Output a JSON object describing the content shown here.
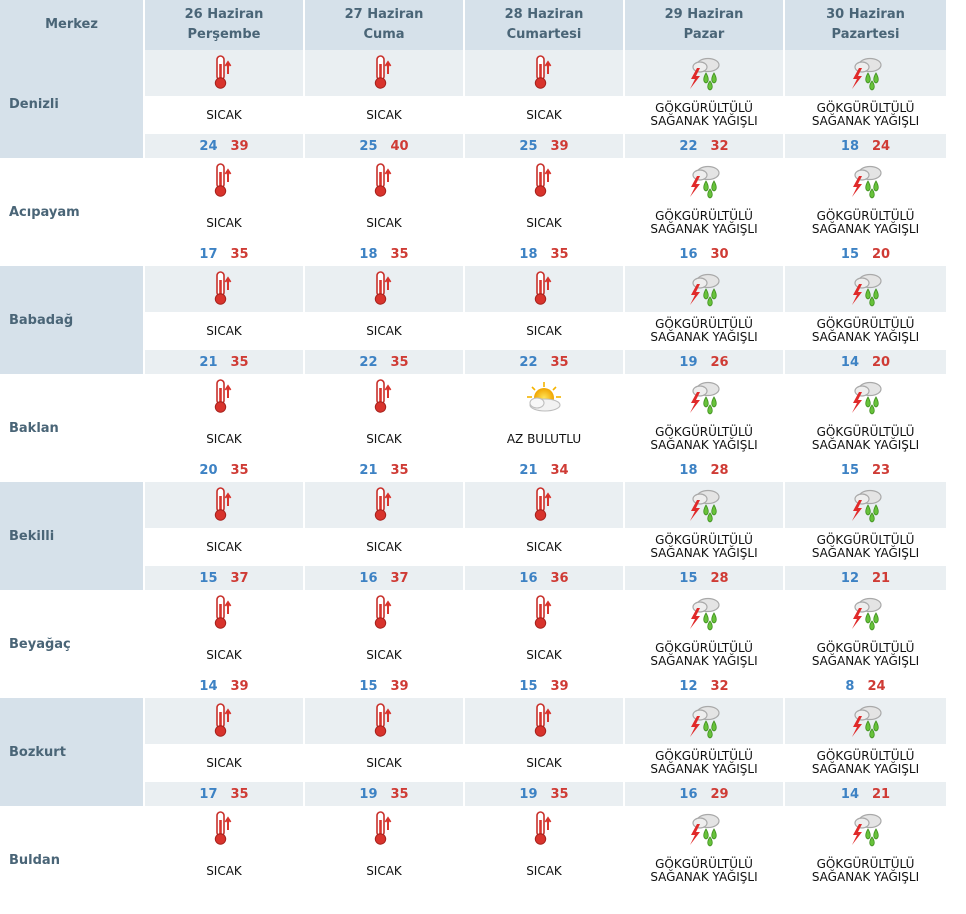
{
  "header": {
    "corner": "Merkez",
    "days": [
      {
        "date": "26 Haziran",
        "weekday": "Perşembe"
      },
      {
        "date": "27 Haziran",
        "weekday": "Cuma"
      },
      {
        "date": "28 Haziran",
        "weekday": "Cumartesi"
      },
      {
        "date": "29 Haziran",
        "weekday": "Pazar"
      },
      {
        "date": "30 Haziran",
        "weekday": "Pazartesi"
      }
    ]
  },
  "colors": {
    "header_bg": "#d6e1ea",
    "min_temp": "#3d82c4",
    "max_temp": "#cf3b35",
    "label": "#4a6577"
  },
  "rows": [
    {
      "city": "Denizli",
      "forecasts": [
        {
          "icon": "thermometer-icon",
          "condition": "SICAK",
          "min": "24",
          "max": "39"
        },
        {
          "icon": "thermometer-icon",
          "condition": "SICAK",
          "min": "25",
          "max": "40"
        },
        {
          "icon": "thermometer-icon",
          "condition": "SICAK",
          "min": "25",
          "max": "39"
        },
        {
          "icon": "thunderstorm-icon",
          "condition": "GÖKGÜRÜLTÜLÜ SAĞANAK YAĞIŞLI",
          "min": "22",
          "max": "32"
        },
        {
          "icon": "thunderstorm-icon",
          "condition": "GÖKGÜRÜLTÜLÜ SAĞANAK YAĞIŞLI",
          "min": "18",
          "max": "24"
        }
      ]
    },
    {
      "city": "Acıpayam",
      "forecasts": [
        {
          "icon": "thermometer-icon",
          "condition": "SICAK",
          "min": "17",
          "max": "35"
        },
        {
          "icon": "thermometer-icon",
          "condition": "SICAK",
          "min": "18",
          "max": "35"
        },
        {
          "icon": "thermometer-icon",
          "condition": "SICAK",
          "min": "18",
          "max": "35"
        },
        {
          "icon": "thunderstorm-icon",
          "condition": "GÖKGÜRÜLTÜLÜ SAĞANAK YAĞIŞLI",
          "min": "16",
          "max": "30"
        },
        {
          "icon": "thunderstorm-icon",
          "condition": "GÖKGÜRÜLTÜLÜ SAĞANAK YAĞIŞLI",
          "min": "15",
          "max": "20"
        }
      ]
    },
    {
      "city": "Babadağ",
      "forecasts": [
        {
          "icon": "thermometer-icon",
          "condition": "SICAK",
          "min": "21",
          "max": "35"
        },
        {
          "icon": "thermometer-icon",
          "condition": "SICAK",
          "min": "22",
          "max": "35"
        },
        {
          "icon": "thermometer-icon",
          "condition": "SICAK",
          "min": "22",
          "max": "35"
        },
        {
          "icon": "thunderstorm-icon",
          "condition": "GÖKGÜRÜLTÜLÜ SAĞANAK YAĞIŞLI",
          "min": "19",
          "max": "26"
        },
        {
          "icon": "thunderstorm-icon",
          "condition": "GÖKGÜRÜLTÜLÜ SAĞANAK YAĞIŞLI",
          "min": "14",
          "max": "20"
        }
      ]
    },
    {
      "city": "Baklan",
      "forecasts": [
        {
          "icon": "thermometer-icon",
          "condition": "SICAK",
          "min": "20",
          "max": "35"
        },
        {
          "icon": "thermometer-icon",
          "condition": "SICAK",
          "min": "21",
          "max": "35"
        },
        {
          "icon": "partly-cloudy-icon",
          "condition": "AZ BULUTLU",
          "min": "21",
          "max": "34"
        },
        {
          "icon": "thunderstorm-icon",
          "condition": "GÖKGÜRÜLTÜLÜ SAĞANAK YAĞIŞLI",
          "min": "18",
          "max": "28"
        },
        {
          "icon": "thunderstorm-icon",
          "condition": "GÖKGÜRÜLTÜLÜ SAĞANAK YAĞIŞLI",
          "min": "15",
          "max": "23"
        }
      ]
    },
    {
      "city": "Bekilli",
      "forecasts": [
        {
          "icon": "thermometer-icon",
          "condition": "SICAK",
          "min": "15",
          "max": "37"
        },
        {
          "icon": "thermometer-icon",
          "condition": "SICAK",
          "min": "16",
          "max": "37"
        },
        {
          "icon": "thermometer-icon",
          "condition": "SICAK",
          "min": "16",
          "max": "36"
        },
        {
          "icon": "thunderstorm-icon",
          "condition": "GÖKGÜRÜLTÜLÜ SAĞANAK YAĞIŞLI",
          "min": "15",
          "max": "28"
        },
        {
          "icon": "thunderstorm-icon",
          "condition": "GÖKGÜRÜLTÜLÜ SAĞANAK YAĞIŞLI",
          "min": "12",
          "max": "21"
        }
      ]
    },
    {
      "city": "Beyağaç",
      "forecasts": [
        {
          "icon": "thermometer-icon",
          "condition": "SICAK",
          "min": "14",
          "max": "39"
        },
        {
          "icon": "thermometer-icon",
          "condition": "SICAK",
          "min": "15",
          "max": "39"
        },
        {
          "icon": "thermometer-icon",
          "condition": "SICAK",
          "min": "15",
          "max": "39"
        },
        {
          "icon": "thunderstorm-icon",
          "condition": "GÖKGÜRÜLTÜLÜ SAĞANAK YAĞIŞLI",
          "min": "12",
          "max": "32"
        },
        {
          "icon": "thunderstorm-icon",
          "condition": "GÖKGÜRÜLTÜLÜ SAĞANAK YAĞIŞLI",
          "min": "8",
          "max": "24"
        }
      ]
    },
    {
      "city": "Bozkurt",
      "forecasts": [
        {
          "icon": "thermometer-icon",
          "condition": "SICAK",
          "min": "17",
          "max": "35"
        },
        {
          "icon": "thermometer-icon",
          "condition": "SICAK",
          "min": "19",
          "max": "35"
        },
        {
          "icon": "thermometer-icon",
          "condition": "SICAK",
          "min": "19",
          "max": "35"
        },
        {
          "icon": "thunderstorm-icon",
          "condition": "GÖKGÜRÜLTÜLÜ SAĞANAK YAĞIŞLI",
          "min": "16",
          "max": "29"
        },
        {
          "icon": "thunderstorm-icon",
          "condition": "GÖKGÜRÜLTÜLÜ SAĞANAK YAĞIŞLI",
          "min": "14",
          "max": "21"
        }
      ]
    },
    {
      "city": "Buldan",
      "forecasts": [
        {
          "icon": "thermometer-icon",
          "condition": "SICAK",
          "min": "",
          "max": ""
        },
        {
          "icon": "thermometer-icon",
          "condition": "SICAK",
          "min": "",
          "max": ""
        },
        {
          "icon": "thermometer-icon",
          "condition": "SICAK",
          "min": "",
          "max": ""
        },
        {
          "icon": "thunderstorm-icon",
          "condition": "GÖKGÜRÜLTÜLÜ SAĞANAK YAĞIŞLI",
          "min": "",
          "max": ""
        },
        {
          "icon": "thunderstorm-icon",
          "condition": "GÖKGÜRÜLTÜLÜ SAĞANAK YAĞIŞLI",
          "min": "",
          "max": ""
        }
      ]
    }
  ]
}
